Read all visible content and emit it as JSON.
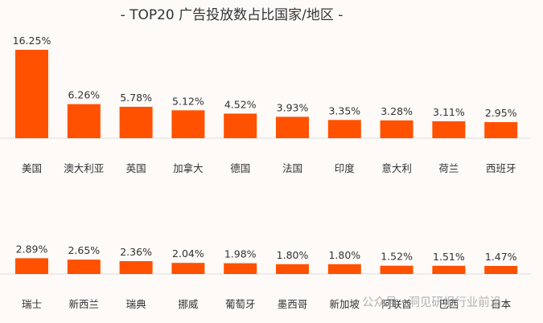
{
  "title": "- TOP20 广告投放数占比国家/地区 -",
  "watermark": "公众号 · 洞见研报行业前沿",
  "colors": {
    "bar": "#ff5100",
    "axis": "#dddddd",
    "text": "#333333"
  },
  "chart_data": {
    "type": "bar",
    "title": "- TOP20 广告投放数占比国家/地区 -",
    "unit": "%",
    "rows": [
      {
        "categories": [
          "美国",
          "澳大利亚",
          "英国",
          "加拿大",
          "德国",
          "法国",
          "印度",
          "意大利",
          "荷兰",
          "西班牙"
        ],
        "values": [
          16.25,
          6.26,
          5.78,
          5.12,
          4.52,
          3.93,
          3.35,
          3.28,
          3.11,
          2.95
        ],
        "labels": [
          "16.25%",
          "6.26%",
          "5.78%",
          "5.12%",
          "4.52%",
          "3.93%",
          "3.35%",
          "3.28%",
          "3.11%",
          "2.95%"
        ]
      },
      {
        "categories": [
          "瑞士",
          "新西兰",
          "瑞典",
          "挪威",
          "葡萄牙",
          "墨西哥",
          "新加坡",
          "阿联酋",
          "巴西",
          "日本"
        ],
        "values": [
          2.89,
          2.65,
          2.36,
          2.04,
          1.98,
          1.8,
          1.8,
          1.52,
          1.51,
          1.47
        ],
        "labels": [
          "2.89%",
          "2.65%",
          "2.36%",
          "2.04%",
          "1.98%",
          "1.80%",
          "1.80%",
          "1.52%",
          "1.51%",
          "1.47%"
        ]
      }
    ]
  }
}
